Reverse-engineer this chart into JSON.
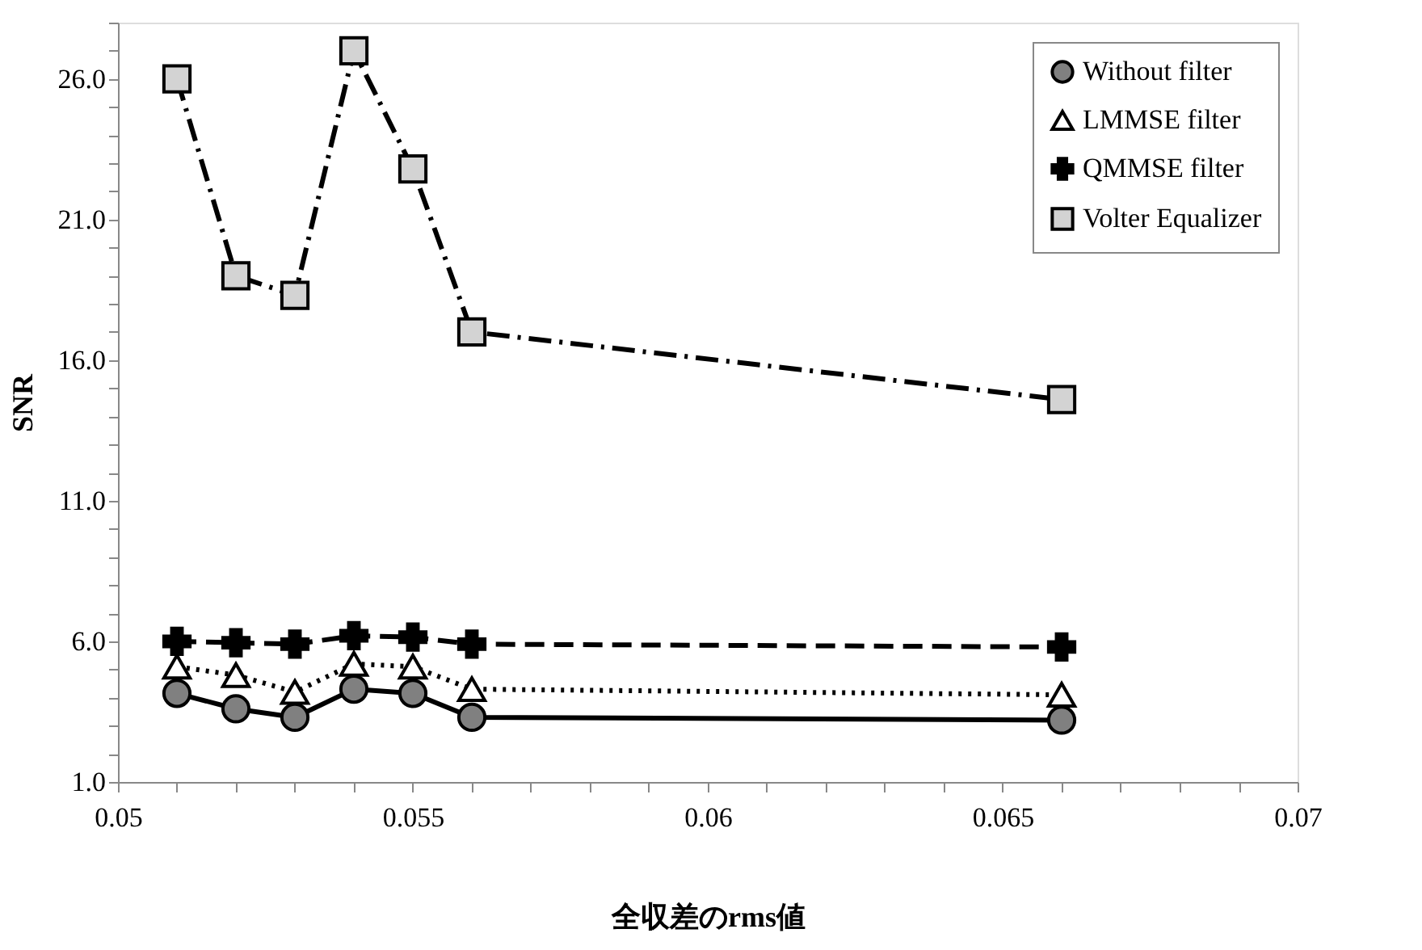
{
  "chart_data": {
    "type": "line",
    "xlabel": "全収差のrms値",
    "ylabel": "SNR",
    "x": [
      0.051,
      0.052,
      0.053,
      0.054,
      0.055,
      0.056,
      0.066
    ],
    "series": [
      {
        "name": "Without filter",
        "color": "#808080",
        "marker": "circle",
        "line_style": "solid",
        "values": [
          4.15,
          3.6,
          3.3,
          4.3,
          4.15,
          3.3,
          3.2
        ]
      },
      {
        "name": "LMMSE filter",
        "color": "#ffffff",
        "marker": "triangle",
        "line_style": "dotted",
        "values": [
          5.1,
          4.8,
          4.2,
          5.2,
          5.1,
          4.3,
          4.1
        ]
      },
      {
        "name": "QMMSE filter",
        "color": "#000000",
        "marker": "cross",
        "line_style": "dashed",
        "values": [
          6.0,
          5.95,
          5.9,
          6.2,
          6.15,
          5.9,
          5.8
        ]
      },
      {
        "name": "Volter Equalizer",
        "color": "#d3d3d3",
        "marker": "square",
        "line_style": "dashed",
        "values": [
          26.0,
          19.0,
          18.3,
          27.0,
          22.8,
          17.0,
          14.6
        ]
      }
    ],
    "xlim": [
      0.05,
      0.07
    ],
    "xticks": [
      0.05,
      {
        "value": 0.051,
        "label": null
      },
      {
        "value": 0.052,
        "label": null
      },
      {
        "value": 0.053,
        "label": null
      },
      {
        "value": 0.054,
        "label": null
      },
      0.055,
      {
        "value": 0.056,
        "label": null
      },
      {
        "value": 0.057,
        "label": null
      },
      {
        "value": 0.058,
        "label": null
      },
      {
        "value": 0.059,
        "label": null
      },
      0.06,
      {
        "value": 0.061,
        "label": null
      },
      {
        "value": 0.062,
        "label": null
      },
      {
        "value": 0.063,
        "label": null
      },
      {
        "value": 0.064,
        "label": null
      },
      0.065,
      {
        "value": 0.066,
        "label": null
      },
      {
        "value": 0.067,
        "label": null
      },
      {
        "value": 0.068,
        "label": null
      },
      {
        "value": 0.069,
        "label": null
      },
      0.07
    ],
    "ylim": [
      1,
      28
    ],
    "yticks": [
      {
        "value": 1,
        "label": "1.0"
      },
      {
        "value": 2,
        "label": null
      },
      {
        "value": 3,
        "label": null
      },
      {
        "value": 4,
        "label": null
      },
      {
        "value": 5,
        "label": null
      },
      {
        "value": 6,
        "label": "6.0"
      },
      {
        "value": 7,
        "label": null
      },
      {
        "value": 8,
        "label": null
      },
      {
        "value": 9,
        "label": null
      },
      {
        "value": 10,
        "label": null
      },
      {
        "value": 11,
        "label": "11.0"
      },
      {
        "value": 12,
        "label": null
      },
      {
        "value": 13,
        "label": null
      },
      {
        "value": 14,
        "label": null
      },
      {
        "value": 15,
        "label": null
      },
      {
        "value": 16,
        "label": "16.0"
      },
      {
        "value": 17,
        "label": null
      },
      {
        "value": 18,
        "label": null
      },
      {
        "value": 19,
        "label": null
      },
      {
        "value": 20,
        "label": null
      },
      {
        "value": 21,
        "label": "21.0"
      },
      {
        "value": 22,
        "label": null
      },
      {
        "value": 23,
        "label": null
      },
      {
        "value": 24,
        "label": null
      },
      {
        "value": 25,
        "label": null
      },
      {
        "value": 26,
        "label": "26.0"
      },
      {
        "value": 27,
        "label": null
      },
      {
        "value": 28,
        "label": null
      }
    ],
    "grid": false,
    "legend": "top right"
  }
}
